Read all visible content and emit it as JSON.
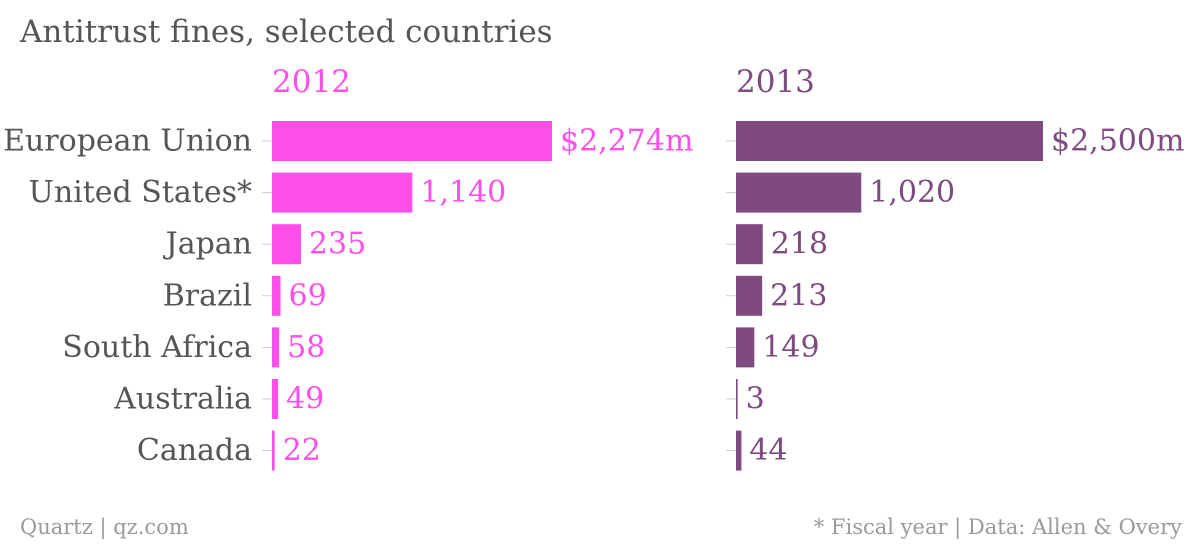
{
  "title": "Antitrust fines, selected countries",
  "footer": {
    "source": "Quartz | qz.com",
    "note": "* Fiscal year | Data: Allen & Overy"
  },
  "colors": {
    "series_2012": "#ff4fe8",
    "series_2013": "#7e4a7f",
    "text": "#555555",
    "footer": "#9a9a9a",
    "tick": "#cccccc"
  },
  "chart_data": {
    "type": "bar",
    "orientation": "horizontal",
    "categories": [
      "European Union",
      "United States*",
      "Japan",
      "Brazil",
      "South Africa",
      "Australia",
      "Canada"
    ],
    "series": [
      {
        "name": "2012",
        "values": [
          2274,
          1140,
          235,
          69,
          58,
          49,
          22
        ],
        "labels": [
          "$2,274m",
          "1,140",
          "235",
          "69",
          "58",
          "49",
          "22"
        ]
      },
      {
        "name": "2013",
        "values": [
          2500,
          1020,
          218,
          213,
          149,
          3,
          44
        ],
        "labels": [
          "$2,500m",
          "1,020",
          "218",
          "213",
          "149",
          "3",
          "44"
        ]
      }
    ],
    "units": "$ millions",
    "grid": false,
    "legend": "panel titles"
  }
}
